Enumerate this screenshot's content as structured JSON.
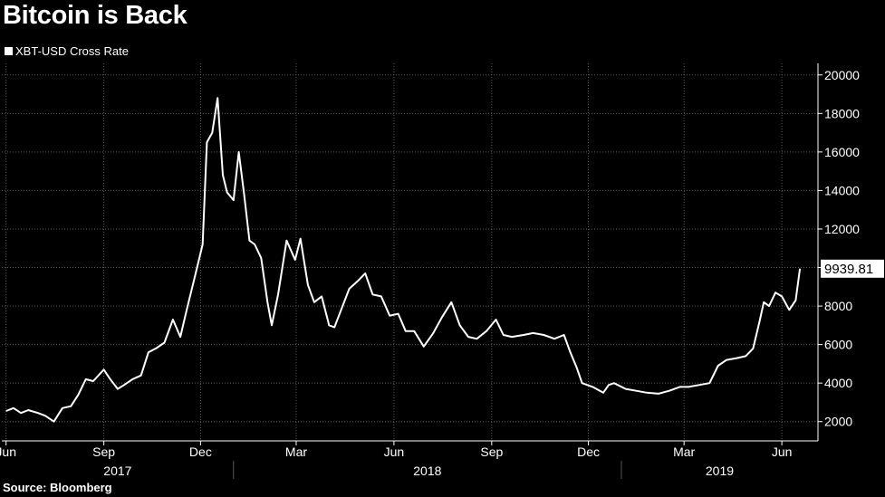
{
  "title": "Bitcoin is Back",
  "source": "Source: Bloomberg",
  "colors": {
    "background": "#000000",
    "line": "#ffffff",
    "grid": "#5a5a5a",
    "text": "#ffffff"
  },
  "chart_data": {
    "type": "line",
    "title": "Bitcoin is Back",
    "xlabel": "",
    "ylabel": "",
    "series": [
      {
        "name": "XBT-USD Cross Rate",
        "x": [
          "2017-06-01",
          "2017-06-08",
          "2017-06-15",
          "2017-06-22",
          "2017-07-01",
          "2017-07-08",
          "2017-07-16",
          "2017-07-24",
          "2017-08-01",
          "2017-08-08",
          "2017-08-15",
          "2017-08-22",
          "2017-09-01",
          "2017-09-07",
          "2017-09-14",
          "2017-09-20",
          "2017-09-28",
          "2017-10-06",
          "2017-10-13",
          "2017-10-20",
          "2017-10-28",
          "2017-11-05",
          "2017-11-12",
          "2017-11-18",
          "2017-11-26",
          "2017-12-03",
          "2017-12-07",
          "2017-12-12",
          "2017-12-17",
          "2017-12-22",
          "2017-12-26",
          "2018-01-01",
          "2018-01-06",
          "2018-01-11",
          "2018-01-16",
          "2018-01-21",
          "2018-01-27",
          "2018-02-02",
          "2018-02-06",
          "2018-02-12",
          "2018-02-20",
          "2018-02-28",
          "2018-03-05",
          "2018-03-12",
          "2018-03-18",
          "2018-03-25",
          "2018-04-01",
          "2018-04-06",
          "2018-04-13",
          "2018-04-20",
          "2018-04-28",
          "2018-05-05",
          "2018-05-12",
          "2018-05-20",
          "2018-05-28",
          "2018-06-05",
          "2018-06-12",
          "2018-06-20",
          "2018-06-29",
          "2018-07-08",
          "2018-07-16",
          "2018-07-25",
          "2018-08-02",
          "2018-08-10",
          "2018-08-18",
          "2018-08-27",
          "2018-09-05",
          "2018-09-12",
          "2018-09-20",
          "2018-10-01",
          "2018-10-10",
          "2018-10-20",
          "2018-10-30",
          "2018-11-08",
          "2018-11-14",
          "2018-11-20",
          "2018-11-25",
          "2018-12-05",
          "2018-12-15",
          "2018-12-20",
          "2018-12-25",
          "2019-01-05",
          "2019-01-15",
          "2019-01-25",
          "2019-02-05",
          "2019-02-15",
          "2019-02-25",
          "2019-03-05",
          "2019-03-15",
          "2019-03-25",
          "2019-04-02",
          "2019-04-10",
          "2019-04-20",
          "2019-04-28",
          "2019-05-05",
          "2019-05-11",
          "2019-05-15",
          "2019-05-20",
          "2019-05-26",
          "2019-06-01",
          "2019-06-08",
          "2019-06-14",
          "2019-06-18"
        ],
        "values": [
          2550,
          2700,
          2450,
          2600,
          2450,
          2300,
          2000,
          2700,
          2800,
          3400,
          4200,
          4100,
          4700,
          4200,
          3700,
          3900,
          4200,
          4400,
          5600,
          5800,
          6100,
          7300,
          6400,
          7800,
          9600,
          11200,
          16500,
          17000,
          18800,
          14800,
          13900,
          13500,
          16000,
          13800,
          11400,
          11200,
          10500,
          8200,
          7000,
          8600,
          11400,
          10400,
          11500,
          9100,
          8200,
          8500,
          7000,
          6900,
          7900,
          8900,
          9300,
          9700,
          8600,
          8500,
          7500,
          7600,
          6700,
          6700,
          5900,
          6600,
          7400,
          8200,
          7000,
          6400,
          6300,
          6700,
          7300,
          6500,
          6400,
          6500,
          6600,
          6500,
          6300,
          6500,
          5600,
          4800,
          4000,
          3800,
          3500,
          3900,
          4000,
          3700,
          3600,
          3500,
          3450,
          3600,
          3800,
          3800,
          3900,
          4000,
          4900,
          5200,
          5300,
          5400,
          5800,
          7200,
          8200,
          8000,
          8700,
          8500,
          7800,
          8300,
          9939.81
        ]
      }
    ],
    "last_value_label": "9939.81",
    "yticks": [
      "2000",
      "4000",
      "6000",
      "8000",
      "10000",
      "12000",
      "14000",
      "16000",
      "18000",
      "20000"
    ],
    "ylim": [
      1000,
      20600
    ],
    "xlim": [
      "2017-05-28",
      "2019-07-05"
    ],
    "month_ticks": [
      {
        "date": "2017-06-01",
        "label": "Jun"
      },
      {
        "date": "2017-09-01",
        "label": "Sep"
      },
      {
        "date": "2017-12-01",
        "label": "Dec"
      },
      {
        "date": "2018-03-01",
        "label": "Mar"
      },
      {
        "date": "2018-06-01",
        "label": "Jun"
      },
      {
        "date": "2018-09-01",
        "label": "Sep"
      },
      {
        "date": "2018-12-01",
        "label": "Dec"
      },
      {
        "date": "2019-03-01",
        "label": "Mar"
      },
      {
        "date": "2019-06-01",
        "label": "Jun"
      }
    ],
    "year_labels": [
      {
        "label": "2017",
        "from": "2017-05-28",
        "to": "2018-01-01"
      },
      {
        "label": "2018",
        "from": "2018-01-01",
        "to": "2019-01-01"
      },
      {
        "label": "2019",
        "from": "2019-01-01",
        "to": "2019-07-05"
      }
    ],
    "y_axis_position": "right",
    "grid": true,
    "legend_position": "top-left"
  }
}
